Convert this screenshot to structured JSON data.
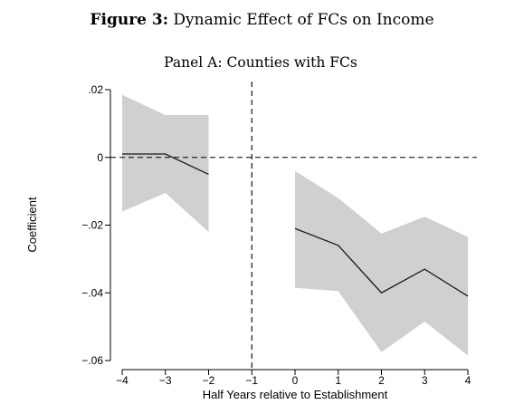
{
  "figure": {
    "label": "Figure 3:",
    "title": "Dynamic Effect of FCs on Income"
  },
  "chart_data": {
    "type": "line",
    "title": "Panel A: Counties with FCs",
    "xlabel": "Half Years relative to Establishment",
    "ylabel": "Coefficient",
    "xlim": [
      -4,
      4
    ],
    "ylim": [
      -0.06,
      0.02
    ],
    "x_ticks": [
      -4,
      -3,
      -2,
      -1,
      0,
      1,
      2,
      3,
      4
    ],
    "x_tick_labels": [
      "−4",
      "−3",
      "−2",
      "−1",
      "0",
      "1",
      "2",
      "3",
      "4"
    ],
    "y_ticks": [
      0.02,
      0,
      -0.02,
      -0.04,
      -0.06
    ],
    "y_tick_labels": [
      ".02",
      "0",
      "−.02",
      "−.04",
      "−.06"
    ],
    "grid": false,
    "reference_lines": {
      "vertical_x": -1,
      "horizontal_y": 0,
      "style": "dashed"
    },
    "series": [
      {
        "segment": "pre",
        "x": [
          -4,
          -3,
          -2
        ],
        "values": [
          0.001,
          0.001,
          -0.005
        ],
        "ci_upper": [
          0.0185,
          0.0125,
          0.0125
        ],
        "ci_lower": [
          -0.016,
          -0.0105,
          -0.022
        ]
      },
      {
        "segment": "post",
        "x": [
          0,
          1,
          2,
          3,
          4
        ],
        "values": [
          -0.021,
          -0.026,
          -0.04,
          -0.033,
          -0.041
        ],
        "ci_upper": [
          -0.004,
          -0.012,
          -0.0225,
          -0.0175,
          -0.0235
        ],
        "ci_lower": [
          -0.0385,
          -0.0395,
          -0.0575,
          -0.0485,
          -0.0585
        ]
      }
    ],
    "colors": {
      "band": "#d0d0d0",
      "line": "#1a1a1a",
      "axis": "#000000"
    }
  }
}
